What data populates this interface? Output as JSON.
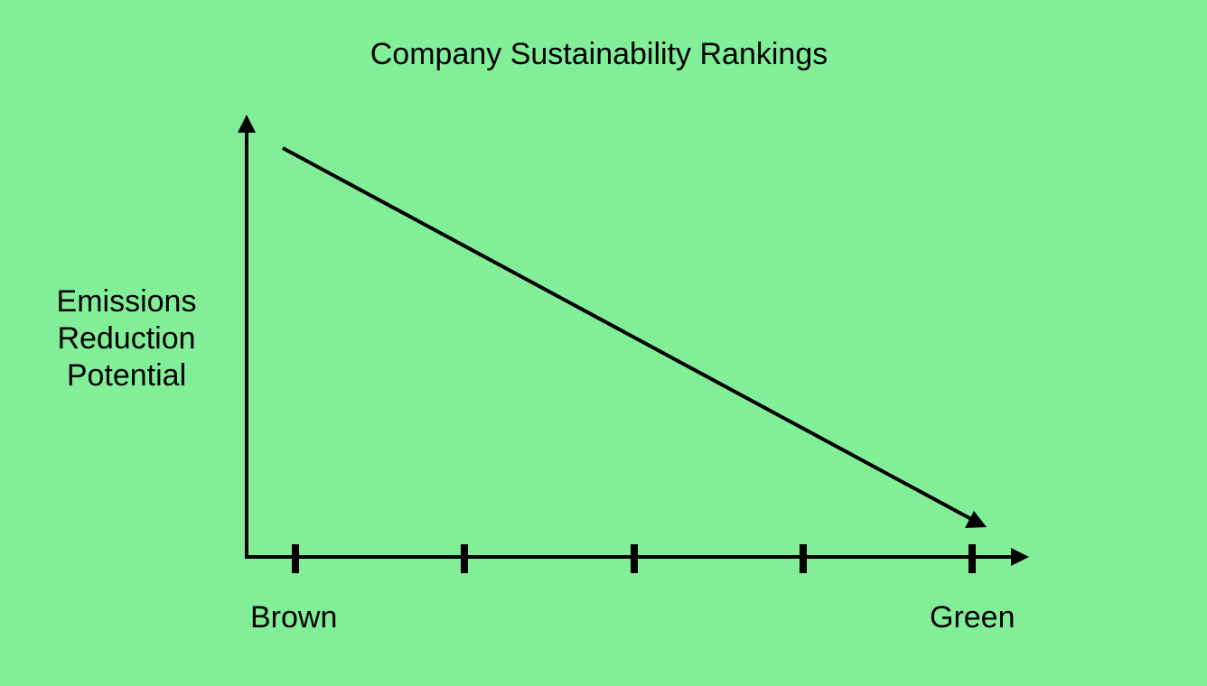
{
  "title": "Company Sustainability Rankings",
  "y_axis": {
    "label_lines": [
      "Emissions",
      "Reduction",
      "Potential"
    ]
  },
  "x_axis": {
    "left_label": "Brown",
    "right_label": "Green",
    "tick_count": 5
  },
  "trend": {
    "direction": "decreasing"
  },
  "colors": {
    "background": "#82ee98",
    "ink": "#000000"
  }
}
